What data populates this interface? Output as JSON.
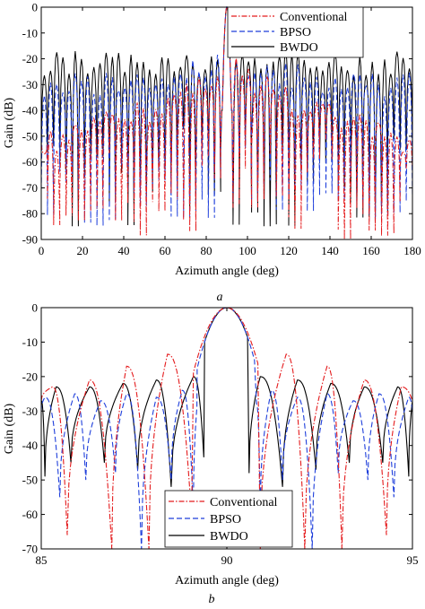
{
  "chart_data": [
    {
      "type": "line",
      "panel_label": "a",
      "xlabel": "Azimuth angle (deg)",
      "ylabel": "Gain (dB)",
      "xlim": [
        0,
        180
      ],
      "ylim": [
        -90,
        0
      ],
      "xticks": [
        0,
        20,
        40,
        60,
        80,
        100,
        120,
        140,
        160,
        180
      ],
      "xtick_labels": [
        "0",
        "20",
        "40",
        "60",
        "80",
        "100",
        "120",
        "140",
        "160",
        "180"
      ],
      "yticks": [
        0,
        -10,
        -20,
        -30,
        -40,
        -50,
        -60,
        -70,
        -80,
        -90
      ],
      "ytick_labels": [
        "0",
        "-10",
        "-20",
        "-30",
        "-40",
        "-50",
        "-60",
        "-70",
        "-80",
        "-90"
      ],
      "grid": false,
      "legend_position": "top-right",
      "series": [
        {
          "name": "Conventional",
          "color": "#e41a1c",
          "dash": "dashdot",
          "main_beam_deg": 90,
          "peak_sidelobe_db": -13,
          "far_sidelobe_db": -40,
          "null_floor_db": -90
        },
        {
          "name": "BPSO",
          "color": "#1f3fdb",
          "dash": "dashed",
          "main_beam_deg": 90,
          "peak_sidelobe_db": -17,
          "far_sidelobe_db": -25,
          "null_floor_db": -85
        },
        {
          "name": "BWDO",
          "color": "#000000",
          "dash": "solid",
          "main_beam_deg": 90,
          "peak_sidelobe_db": -16,
          "far_sidelobe_db": -17,
          "null_floor_db": -87
        }
      ]
    },
    {
      "type": "line",
      "panel_label": "b",
      "xlabel": "Azimuth angle (deg)",
      "ylabel": "Gain (dB)",
      "xlim": [
        85,
        95
      ],
      "ylim": [
        -70,
        0
      ],
      "xticks": [
        85,
        90,
        95
      ],
      "xtick_labels": [
        "85",
        "90",
        "95"
      ],
      "yticks": [
        0,
        -10,
        -20,
        -30,
        -40,
        -50,
        -60,
        -70
      ],
      "ytick_labels": [
        "0",
        "-10",
        "-20",
        "-30",
        "-40",
        "-50",
        "-60",
        "-70"
      ],
      "grid": false,
      "legend_position": "bottom-center",
      "series": [
        {
          "name": "Conventional",
          "color": "#e41a1c",
          "dash": "dashdot",
          "mainlobe_width_deg": 0.72,
          "sidelobe_peaks": [
            [
              85.3,
              -23
            ],
            [
              86.3,
              -21
            ],
            [
              87.3,
              -17
            ],
            [
              88.4,
              -13.5
            ],
            [
              91.6,
              -13.5
            ],
            [
              92.7,
              -17
            ],
            [
              93.7,
              -21
            ],
            [
              94.7,
              -23
            ]
          ],
          "nulls": [
            [
              85.7,
              -66
            ],
            [
              86.9,
              -70
            ],
            [
              87.9,
              -70
            ],
            [
              89.1,
              -70
            ],
            [
              90.9,
              -70
            ],
            [
              92.1,
              -70
            ],
            [
              93.1,
              -70
            ],
            [
              94.3,
              -66
            ]
          ]
        },
        {
          "name": "BPSO",
          "color": "#1f3fdb",
          "dash": "dashed",
          "mainlobe_width_deg": 0.66,
          "sidelobe_peaks": [
            [
              85.1,
              -26
            ],
            [
              85.9,
              -25
            ],
            [
              86.6,
              -27
            ],
            [
              87.3,
              -25
            ],
            [
              88.1,
              -26
            ],
            [
              88.8,
              -24
            ],
            [
              89.2,
              -28
            ],
            [
              90.8,
              -28
            ],
            [
              91.2,
              -24
            ],
            [
              91.9,
              -26
            ],
            [
              92.7,
              -25
            ],
            [
              93.4,
              -27
            ],
            [
              94.1,
              -25
            ],
            [
              94.9,
              -26
            ]
          ],
          "nulls": [
            [
              85.5,
              -55
            ],
            [
              86.2,
              -50
            ],
            [
              87.0,
              -48
            ],
            [
              87.7,
              -70
            ],
            [
              88.5,
              -50
            ],
            [
              89.1,
              -60
            ],
            [
              90.9,
              -60
            ],
            [
              91.5,
              -50
            ],
            [
              92.3,
              -70
            ],
            [
              93.0,
              -48
            ],
            [
              93.8,
              -50
            ],
            [
              94.5,
              -55
            ]
          ]
        },
        {
          "name": "BWDO",
          "color": "#000000",
          "dash": "solid",
          "mainlobe_width_deg": 0.66,
          "sidelobe_peaks": [
            [
              85.4,
              -23
            ],
            [
              86.3,
              -23
            ],
            [
              87.2,
              -22
            ],
            [
              88.1,
              -21
            ],
            [
              89.1,
              -20
            ],
            [
              90.9,
              -20
            ],
            [
              91.9,
              -21
            ],
            [
              92.8,
              -22
            ],
            [
              93.7,
              -23
            ],
            [
              94.6,
              -23
            ]
          ],
          "nulls": [
            [
              85.1,
              -49
            ],
            [
              85.8,
              -45
            ],
            [
              86.7,
              -45
            ],
            [
              87.6,
              -47
            ],
            [
              88.5,
              -52
            ],
            [
              89.4,
              -48
            ],
            [
              90.6,
              -48
            ],
            [
              91.5,
              -52
            ],
            [
              92.4,
              -47
            ],
            [
              93.3,
              -45
            ],
            [
              94.2,
              -45
            ],
            [
              94.9,
              -49
            ]
          ]
        }
      ]
    }
  ]
}
